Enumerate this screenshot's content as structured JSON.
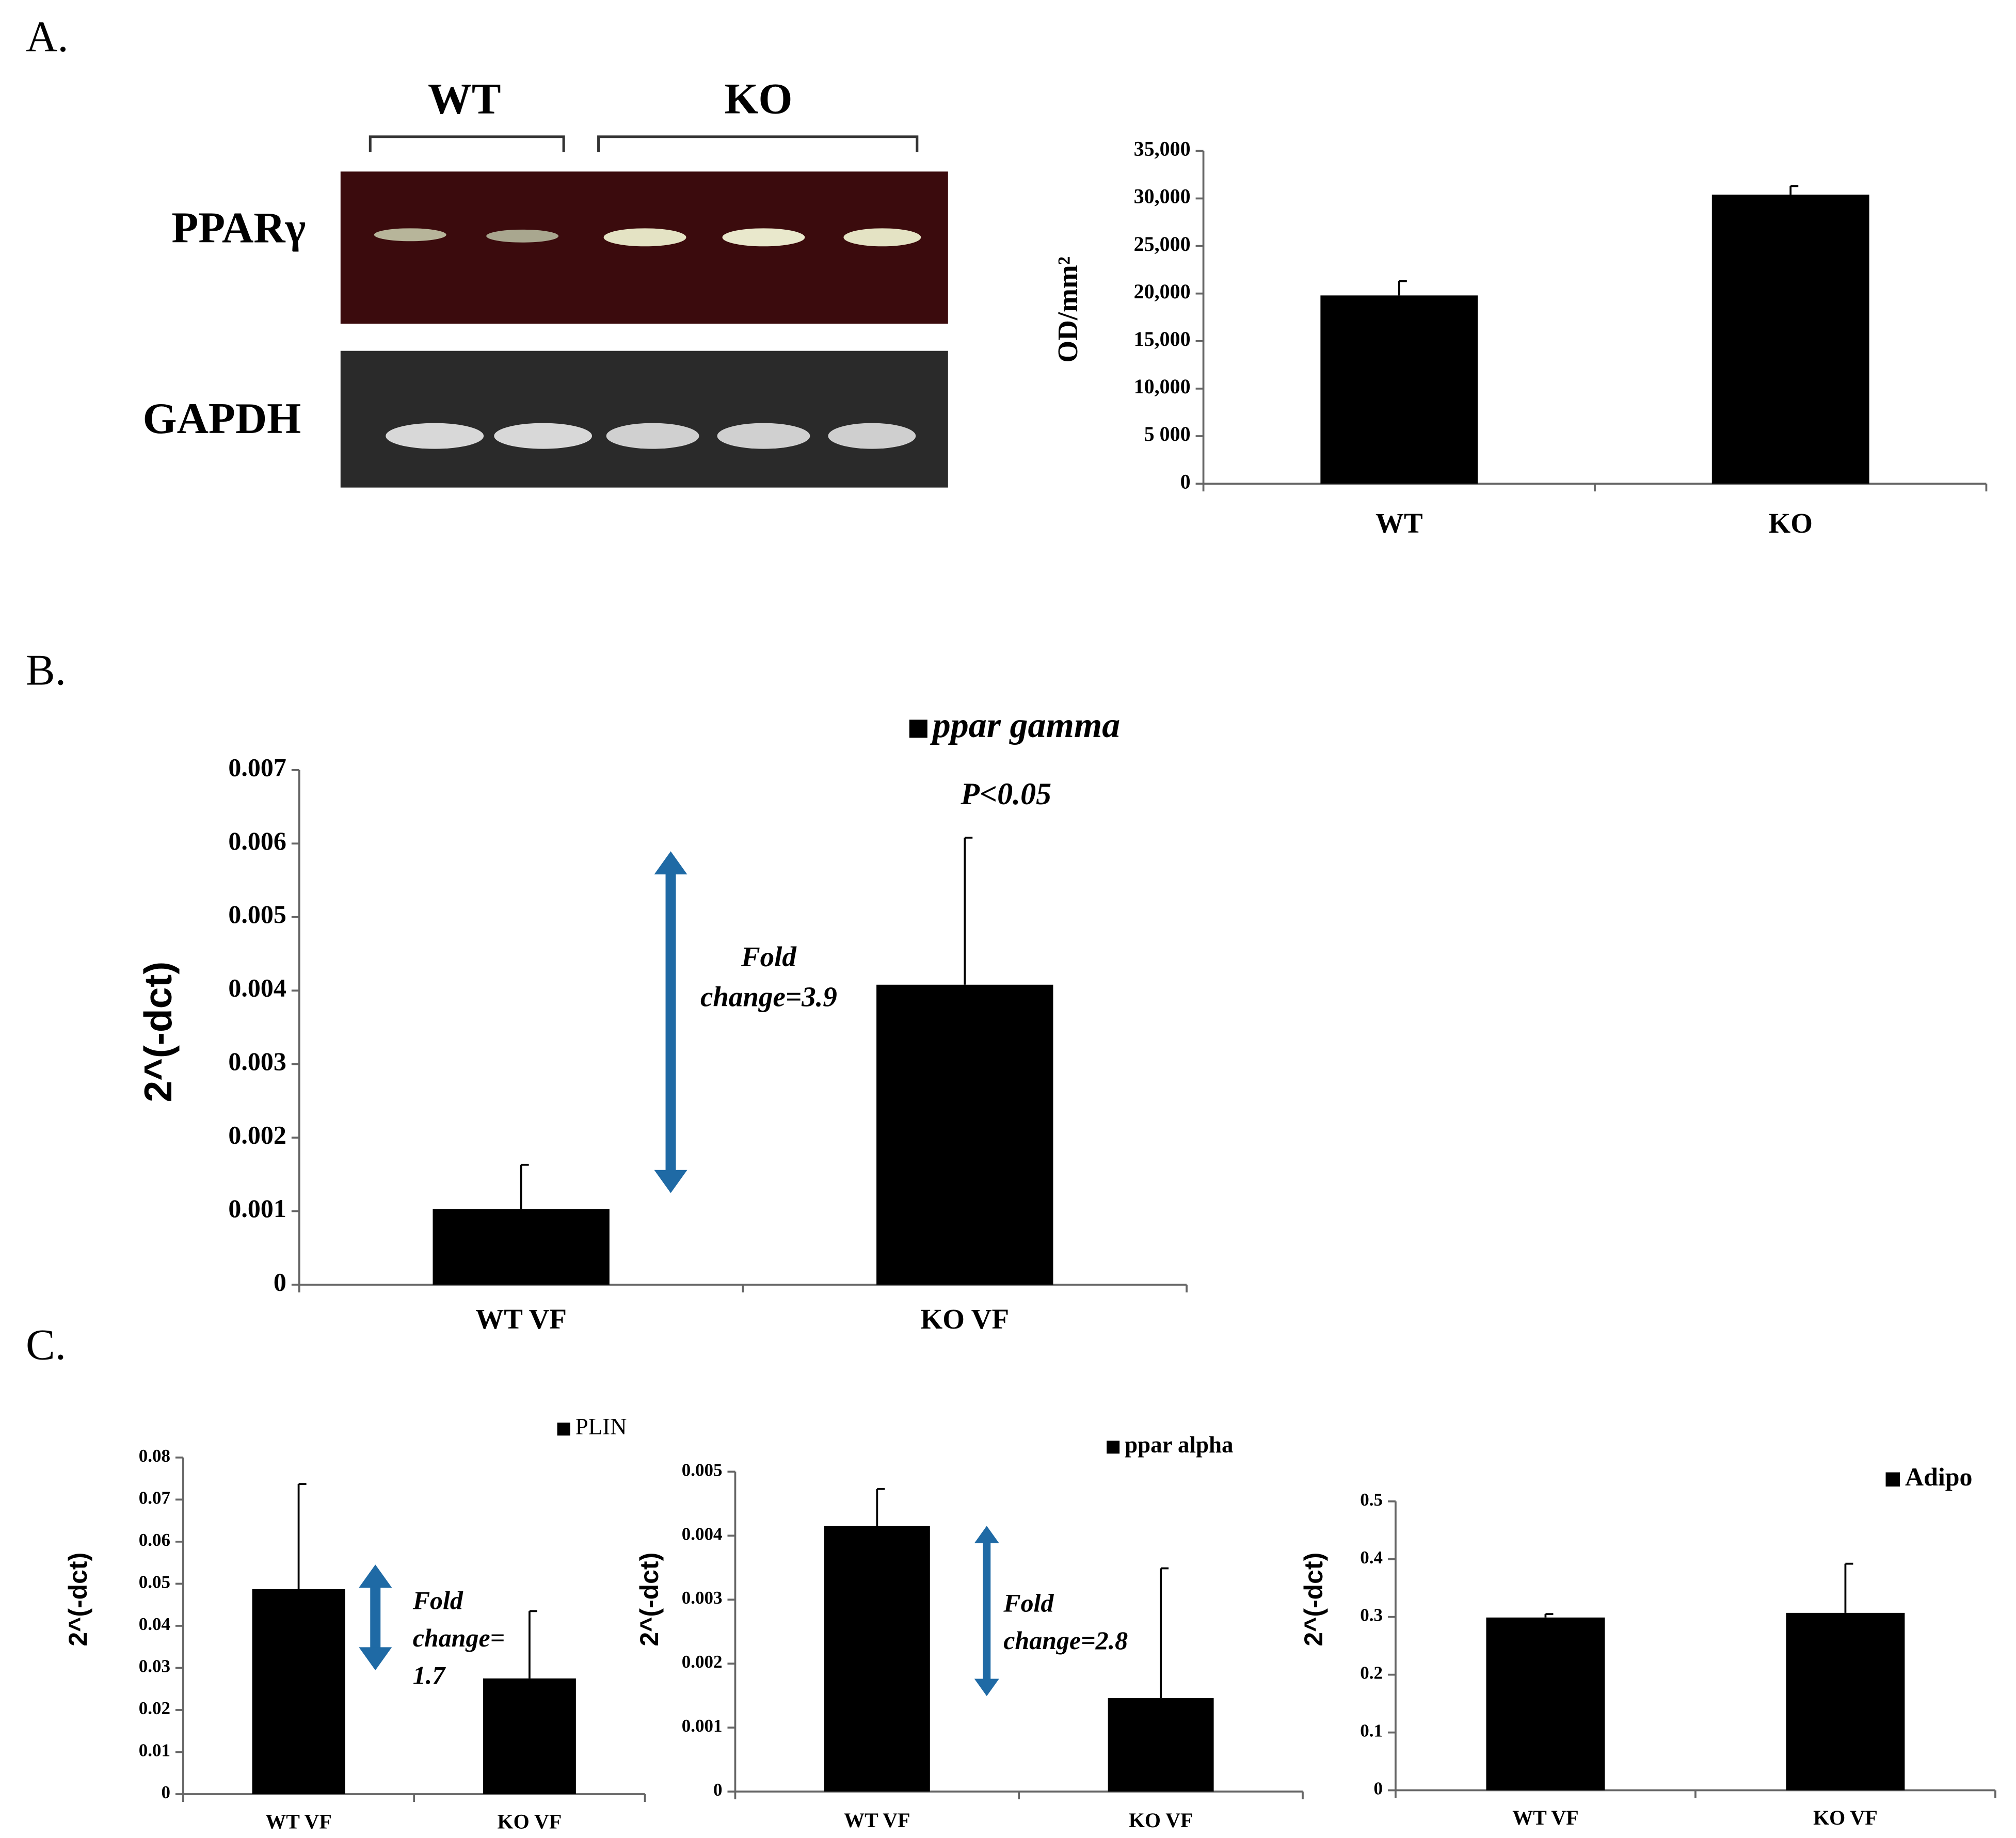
{
  "panel_labels": [
    "A.",
    "B.",
    "C."
  ],
  "gel": {
    "groups": [
      "WT",
      "KO"
    ],
    "rows": [
      "PPARγ",
      "GAPDH"
    ]
  },
  "chart_data": [
    {
      "type": "bar",
      "ylabel": "OD/mm²",
      "categories": [
        "WT",
        "KO"
      ],
      "series": [
        {
          "color": "#000000",
          "values": [
            19800,
            30400
          ],
          "errors": [
            1500,
            900
          ]
        }
      ],
      "ylim": [
        0,
        35000
      ],
      "yticks": [
        0,
        {
          "value": 5000,
          "label": "5 000"
        },
        {
          "value": 10000,
          "label": "10,000"
        },
        {
          "value": 15000,
          "label": "15,000"
        },
        {
          "value": 20000,
          "label": "20,000"
        },
        {
          "value": 25000,
          "label": "25,000"
        },
        {
          "value": 30000,
          "label": "30,000"
        },
        {
          "value": 35000,
          "label": "35,000"
        }
      ]
    },
    {
      "type": "bar",
      "ylabel": "2^(-dct)",
      "categories": [
        "WT VF",
        "KO VF"
      ],
      "series": [
        {
          "name": "ppar gamma",
          "color": "#000000",
          "values": [
            0.00103,
            0.00408
          ],
          "errors": [
            0.0006,
            0.002
          ]
        }
      ],
      "ylim": [
        0,
        0.007
      ],
      "yticks": [
        0,
        0.001,
        0.002,
        0.003,
        0.004,
        0.005,
        0.006,
        0.007
      ],
      "annotations": [
        [
          "P<0.05"
        ],
        [
          "Fold",
          "change=3.9"
        ]
      ],
      "arrow_color": "#1f6aa5"
    },
    {
      "type": "bar",
      "ylabel": "2^(-dct)",
      "categories": [
        "WT VF",
        "KO VF"
      ],
      "series": [
        {
          "name": "PLIN",
          "color": "#000000",
          "values": [
            0.0487,
            0.0275
          ],
          "errors": [
            0.025,
            0.016
          ]
        }
      ],
      "ylim": [
        0,
        0.08
      ],
      "yticks": [
        0,
        0.01,
        0.02,
        0.03,
        0.04,
        0.05,
        0.06,
        0.07,
        0.08
      ],
      "annotations": [
        [
          "Fold",
          "change=",
          "1.7"
        ]
      ],
      "arrow_color": "#1f6aa5"
    },
    {
      "type": "bar",
      "ylabel": "2^(-dct)",
      "categories": [
        "WT VF",
        "KO VF"
      ],
      "series": [
        {
          "name": "ppar alpha",
          "color": "#000000",
          "values": [
            0.00415,
            0.00146
          ],
          "errors": [
            0.00058,
            0.00203
          ]
        }
      ],
      "ylim": [
        0,
        0.005
      ],
      "yticks": [
        0,
        0.001,
        0.002,
        0.003,
        0.004,
        0.005
      ],
      "annotations": [
        [
          "Fold",
          "change=2.8"
        ]
      ],
      "arrow_color": "#1f6aa5"
    },
    {
      "type": "bar",
      "ylabel": "2^(-dct)",
      "categories": [
        "WT VF",
        "KO VF"
      ],
      "series": [
        {
          "name": "Adipo",
          "color": "#000000",
          "values": [
            0.299,
            0.307
          ],
          "errors": [
            0.006,
            0.085
          ]
        }
      ],
      "ylim": [
        0,
        0.5
      ],
      "yticks": [
        0,
        0.1,
        0.2,
        0.3,
        0.4,
        0.5
      ]
    }
  ]
}
